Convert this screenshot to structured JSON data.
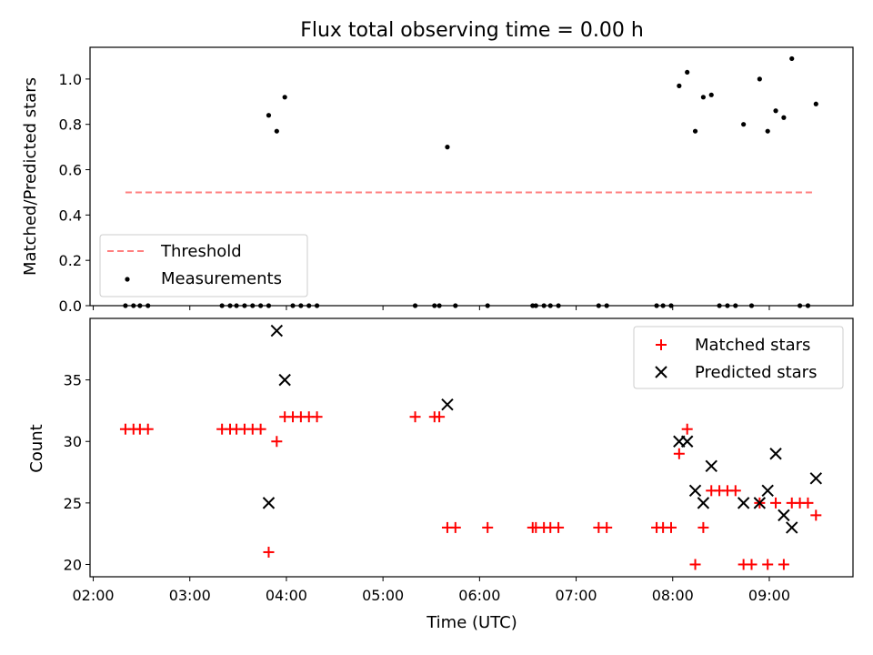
{
  "chart_data": [
    {
      "type": "scatter",
      "title": "Flux total observing time = 0.00 h",
      "xlabel": "",
      "ylabel": "Matched/Predicted stars",
      "xlim": [
        "01:58",
        "09:52"
      ],
      "ylim": [
        0,
        1.14
      ],
      "yticks": [
        0.0,
        0.2,
        0.4,
        0.6,
        0.8,
        1.0
      ],
      "ytick_labels": [
        "0.0",
        "0.2",
        "0.4",
        "0.6",
        "0.8",
        "1.0"
      ],
      "legend": {
        "position": "lower-left",
        "entries": [
          "Threshold",
          "Measurements"
        ]
      },
      "series": [
        {
          "name": "Threshold",
          "style": "dashed-line",
          "color": "#ff7f7f",
          "x": [
            "02:20",
            "09:28"
          ],
          "y": [
            0.5,
            0.5
          ]
        },
        {
          "name": "Measurements",
          "style": "dot",
          "color": "#000000",
          "points": [
            [
              "02:20",
              0.0
            ],
            [
              "02:25",
              0.0
            ],
            [
              "02:29",
              0.0
            ],
            [
              "02:34",
              0.0
            ],
            [
              "03:20",
              0.0
            ],
            [
              "03:25",
              0.0
            ],
            [
              "03:29",
              0.0
            ],
            [
              "03:34",
              0.0
            ],
            [
              "03:39",
              0.0
            ],
            [
              "03:44",
              0.0
            ],
            [
              "03:49",
              0.0
            ],
            [
              "03:49",
              0.84
            ],
            [
              "03:54",
              0.77
            ],
            [
              "03:59",
              0.92
            ],
            [
              "04:04",
              0.0
            ],
            [
              "04:09",
              0.0
            ],
            [
              "04:14",
              0.0
            ],
            [
              "04:19",
              0.0
            ],
            [
              "05:20",
              0.0
            ],
            [
              "05:32",
              0.0
            ],
            [
              "05:35",
              0.0
            ],
            [
              "05:40",
              0.7
            ],
            [
              "05:45",
              0.0
            ],
            [
              "06:05",
              0.0
            ],
            [
              "06:33",
              0.0
            ],
            [
              "06:35",
              0.0
            ],
            [
              "06:40",
              0.0
            ],
            [
              "06:44",
              0.0
            ],
            [
              "06:49",
              0.0
            ],
            [
              "07:14",
              0.0
            ],
            [
              "07:19",
              0.0
            ],
            [
              "07:50",
              0.0
            ],
            [
              "07:54",
              0.0
            ],
            [
              "07:59",
              0.0
            ],
            [
              "08:04",
              0.97
            ],
            [
              "08:09",
              1.03
            ],
            [
              "08:14",
              0.77
            ],
            [
              "08:19",
              0.92
            ],
            [
              "08:24",
              0.93
            ],
            [
              "08:29",
              0.0
            ],
            [
              "08:34",
              0.0
            ],
            [
              "08:39",
              0.0
            ],
            [
              "08:44",
              0.8
            ],
            [
              "08:49",
              0.0
            ],
            [
              "08:54",
              1.0
            ],
            [
              "08:59",
              0.77
            ],
            [
              "09:04",
              0.86
            ],
            [
              "09:09",
              0.83
            ],
            [
              "09:14",
              1.09
            ],
            [
              "09:19",
              0.0
            ],
            [
              "09:24",
              0.0
            ],
            [
              "09:29",
              0.89
            ]
          ]
        }
      ]
    },
    {
      "type": "scatter",
      "title": "",
      "xlabel": "Time (UTC)",
      "ylabel": "Count",
      "xlim": [
        "01:58",
        "09:52"
      ],
      "ylim": [
        19,
        40
      ],
      "yticks": [
        20,
        25,
        30,
        35
      ],
      "ytick_labels": [
        "20",
        "25",
        "30",
        "35"
      ],
      "xticks": [
        "02:00",
        "03:00",
        "04:00",
        "05:00",
        "06:00",
        "07:00",
        "08:00",
        "09:00"
      ],
      "xtick_labels": [
        "02:00",
        "03:00",
        "04:00",
        "05:00",
        "06:00",
        "07:00",
        "08:00",
        "09:00"
      ],
      "legend": {
        "position": "top-right",
        "entries": [
          "Matched stars",
          "Predicted stars"
        ]
      },
      "series": [
        {
          "name": "Matched stars",
          "marker": "plus",
          "color": "#ff0000",
          "points": [
            [
              "02:20",
              31
            ],
            [
              "02:25",
              31
            ],
            [
              "02:29",
              31
            ],
            [
              "02:34",
              31
            ],
            [
              "03:20",
              31
            ],
            [
              "03:25",
              31
            ],
            [
              "03:29",
              31
            ],
            [
              "03:34",
              31
            ],
            [
              "03:39",
              31
            ],
            [
              "03:44",
              31
            ],
            [
              "03:49",
              21
            ],
            [
              "03:54",
              30
            ],
            [
              "03:59",
              32
            ],
            [
              "04:04",
              32
            ],
            [
              "04:09",
              32
            ],
            [
              "04:14",
              32
            ],
            [
              "04:19",
              32
            ],
            [
              "05:20",
              32
            ],
            [
              "05:32",
              32
            ],
            [
              "05:35",
              32
            ],
            [
              "05:40",
              23
            ],
            [
              "05:45",
              23
            ],
            [
              "06:05",
              23
            ],
            [
              "06:33",
              23
            ],
            [
              "06:35",
              23
            ],
            [
              "06:40",
              23
            ],
            [
              "06:44",
              23
            ],
            [
              "06:49",
              23
            ],
            [
              "07:14",
              23
            ],
            [
              "07:19",
              23
            ],
            [
              "07:50",
              23
            ],
            [
              "07:54",
              23
            ],
            [
              "07:59",
              23
            ],
            [
              "08:04",
              29
            ],
            [
              "08:09",
              31
            ],
            [
              "08:14",
              20
            ],
            [
              "08:19",
              23
            ],
            [
              "08:24",
              26
            ],
            [
              "08:29",
              26
            ],
            [
              "08:34",
              26
            ],
            [
              "08:39",
              26
            ],
            [
              "08:44",
              20
            ],
            [
              "08:49",
              20
            ],
            [
              "08:54",
              25
            ],
            [
              "08:59",
              20
            ],
            [
              "09:04",
              25
            ],
            [
              "09:09",
              20
            ],
            [
              "09:14",
              25
            ],
            [
              "09:19",
              25
            ],
            [
              "09:24",
              25
            ],
            [
              "09:29",
              24
            ]
          ]
        },
        {
          "name": "Predicted stars",
          "marker": "x",
          "color": "#000000",
          "points": [
            [
              "03:49",
              25
            ],
            [
              "03:54",
              39
            ],
            [
              "03:59",
              35
            ],
            [
              "05:40",
              33
            ],
            [
              "08:04",
              30
            ],
            [
              "08:09",
              30
            ],
            [
              "08:14",
              26
            ],
            [
              "08:19",
              25
            ],
            [
              "08:24",
              28
            ],
            [
              "08:44",
              25
            ],
            [
              "08:54",
              25
            ],
            [
              "08:59",
              26
            ],
            [
              "09:04",
              29
            ],
            [
              "09:09",
              24
            ],
            [
              "09:14",
              23
            ],
            [
              "09:29",
              27
            ]
          ]
        }
      ]
    }
  ]
}
